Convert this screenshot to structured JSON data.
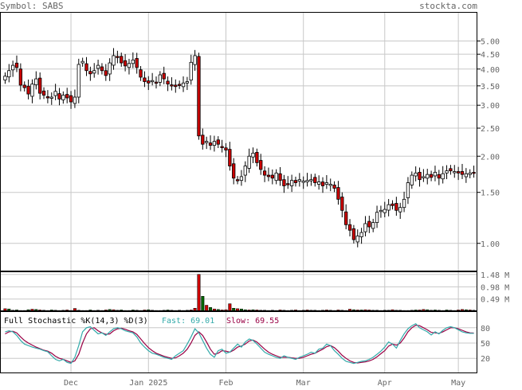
{
  "header": {
    "symbol_text": "Symbol: SABS",
    "source_text": "stockta.com"
  },
  "colors": {
    "up_candle": "#ffffff",
    "down_candle": "#cc0000",
    "volume_up": "#cc0000",
    "volume_down": "#006600",
    "fast_line": "#33aaaa",
    "slow_line": "#990044",
    "grid": "#c8c8c8",
    "frame": "#000000",
    "text": "#666666"
  },
  "chart_data": [
    {
      "type": "candlestick",
      "name": "price",
      "y_scale": "log",
      "ylim": [
        0.8,
        6.3
      ],
      "y_ticks": [
        "1.00",
        "1.50",
        "2.00",
        "2.50",
        "3.00",
        "3.50",
        "4.00",
        "4.50",
        "5.00"
      ],
      "x_ticks": [
        "Dec",
        "Jan 2025",
        "Feb",
        "Mar",
        "Apr",
        "May"
      ],
      "x_tick_index": [
        17,
        37,
        57,
        77,
        98,
        117
      ],
      "trading_days": 122,
      "close": [
        3.78,
        3.95,
        4.12,
        4.05,
        3.52,
        3.45,
        3.28,
        3.55,
        3.7,
        3.3,
        3.25,
        3.18,
        3.2,
        3.35,
        3.15,
        3.25,
        3.18,
        3.08,
        3.2,
        4.15,
        4.25,
        3.95,
        3.85,
        3.95,
        4.12,
        3.95,
        3.8,
        4.2,
        4.45,
        4.4,
        4.2,
        4.1,
        4.18,
        4.3,
        4.05,
        3.75,
        3.62,
        3.58,
        3.65,
        3.6,
        3.82,
        3.7,
        3.55,
        3.5,
        3.48,
        3.52,
        3.58,
        3.62,
        4.22,
        4.45,
        2.35,
        2.2,
        2.25,
        2.18,
        2.25,
        2.2,
        2.15,
        2.1,
        1.85,
        1.68,
        1.65,
        1.7,
        1.85,
        2.0,
        2.05,
        1.9,
        1.8,
        1.72,
        1.7,
        1.68,
        1.75,
        1.65,
        1.58,
        1.6,
        1.65,
        1.62,
        1.66,
        1.64,
        1.65,
        1.66,
        1.62,
        1.63,
        1.58,
        1.62,
        1.6,
        1.55,
        1.42,
        1.3,
        1.16,
        1.11,
        1.03,
        1.06,
        1.09,
        1.17,
        1.14,
        1.18,
        1.28,
        1.3,
        1.31,
        1.36,
        1.35,
        1.3,
        1.33,
        1.42,
        1.62,
        1.72,
        1.75,
        1.66,
        1.7,
        1.73,
        1.69,
        1.76,
        1.68,
        1.74,
        1.78,
        1.78,
        1.77,
        1.75,
        1.73,
        1.74,
        1.75,
        1.76
      ],
      "volume_axis_labels": [
        "1.48 M",
        "0.98 M",
        "0.49 M"
      ],
      "volume_max_m": 1.6,
      "volume_m": [
        0.1,
        0.09,
        0.04,
        0.05,
        0.03,
        0.03,
        0.06,
        0.08,
        0.07,
        0.05,
        0.04,
        0.03,
        0.05,
        0.04,
        0.03,
        0.04,
        0.05,
        0.03,
        0.11,
        0.04,
        0.03,
        0.03,
        0.05,
        0.03,
        0.04,
        0.03,
        0.05,
        0.07,
        0.06,
        0.04,
        0.05,
        0.03,
        0.03,
        0.05,
        0.04,
        0.03,
        0.05,
        0.06,
        0.04,
        0.03,
        0.03,
        0.04,
        0.05,
        0.04,
        0.03,
        0.04,
        0.03,
        0.04,
        0.05,
        0.12,
        1.48,
        0.6,
        0.24,
        0.15,
        0.09,
        0.07,
        0.05,
        0.06,
        0.3,
        0.12,
        0.1,
        0.09,
        0.06,
        0.05,
        0.06,
        0.05,
        0.04,
        0.04,
        0.03,
        0.04,
        0.03,
        0.05,
        0.04,
        0.03,
        0.04,
        0.05,
        0.03,
        0.04,
        0.05,
        0.04,
        0.04,
        0.03,
        0.04,
        0.05,
        0.04,
        0.03,
        0.05,
        0.04,
        0.03,
        0.08,
        0.06,
        0.05,
        0.05,
        0.06,
        0.05,
        0.04,
        0.04,
        0.03,
        0.04,
        0.04,
        0.06,
        0.04,
        0.04,
        0.03,
        0.03,
        0.04,
        0.05,
        0.05,
        0.07,
        0.06,
        0.04,
        0.05,
        0.04,
        0.03,
        0.05,
        0.04,
        0.03,
        0.05,
        0.07,
        0.06,
        0.05,
        0.04
      ],
      "volume_up": [
        1,
        0,
        1,
        0,
        1,
        0,
        0,
        1,
        0,
        1,
        0,
        1,
        0,
        0,
        1,
        0,
        1,
        0,
        1,
        0,
        1,
        1,
        0,
        1,
        0,
        1,
        1,
        0,
        1,
        1,
        0,
        1,
        0,
        0,
        1,
        0,
        1,
        0,
        1,
        1,
        0,
        1,
        0,
        1,
        0,
        1,
        0,
        0,
        1,
        1,
        1,
        0,
        1,
        0,
        1,
        0,
        1,
        1,
        1,
        0,
        1,
        0,
        0,
        1,
        0,
        1,
        1,
        0,
        1,
        0,
        1,
        1,
        0,
        1,
        0,
        1,
        0,
        1,
        1,
        0,
        1,
        1,
        0,
        1,
        0,
        1,
        1,
        1,
        0,
        1,
        0,
        1,
        0,
        1,
        1,
        0,
        1,
        0,
        1,
        0,
        1,
        1,
        0,
        1,
        0,
        1,
        0,
        1,
        1,
        0,
        1,
        0,
        1,
        1,
        0,
        1,
        0,
        1,
        1,
        0,
        1,
        0
      ],
      "stoch_label": "Full Stochastic %K(14,3) %D(3)",
      "fast_label": "Fast: 69.01",
      "slow_label": "Slow: 69.55",
      "stoch_ticks": [
        "80",
        "50",
        "20"
      ],
      "stoch_fast": [
        72,
        74,
        72,
        65,
        55,
        48,
        45,
        42,
        40,
        38,
        35,
        33,
        25,
        18,
        15,
        18,
        12,
        10,
        22,
        45,
        72,
        80,
        82,
        75,
        68,
        70,
        65,
        72,
        78,
        80,
        78,
        74,
        72,
        70,
        62,
        50,
        42,
        35,
        30,
        28,
        25,
        22,
        20,
        18,
        25,
        30,
        35,
        48,
        62,
        78,
        70,
        55,
        40,
        28,
        22,
        35,
        38,
        30,
        32,
        40,
        48,
        42,
        52,
        58,
        55,
        48,
        40,
        32,
        28,
        25,
        22,
        20,
        25,
        22,
        20,
        18,
        22,
        25,
        28,
        32,
        30,
        38,
        40,
        48,
        45,
        35,
        28,
        20,
        14,
        12,
        10,
        12,
        14,
        15,
        18,
        22,
        28,
        34,
        42,
        52,
        48,
        40,
        55,
        68,
        78,
        84,
        88,
        80,
        76,
        72,
        66,
        72,
        68,
        75,
        80,
        82,
        80,
        76,
        72,
        70,
        69,
        69.01
      ],
      "stoch_slow": [
        68,
        72,
        73,
        70,
        62,
        55,
        50,
        46,
        42,
        39,
        36,
        34,
        30,
        24,
        20,
        18,
        15,
        12,
        15,
        28,
        50,
        68,
        78,
        80,
        74,
        70,
        67,
        68,
        74,
        78,
        79,
        77,
        74,
        72,
        67,
        58,
        49,
        41,
        35,
        30,
        27,
        24,
        22,
        20,
        21,
        25,
        30,
        38,
        50,
        65,
        72,
        65,
        52,
        38,
        28,
        30,
        35,
        34,
        32,
        36,
        42,
        44,
        48,
        54,
        56,
        52,
        45,
        38,
        32,
        28,
        25,
        22,
        22,
        22,
        21,
        20,
        20,
        22,
        25,
        28,
        30,
        34,
        38,
        43,
        45,
        41,
        34,
        26,
        20,
        15,
        12,
        11,
        12,
        13,
        15,
        18,
        23,
        29,
        35,
        44,
        48,
        46,
        50,
        60,
        72,
        80,
        85,
        84,
        80,
        76,
        71,
        70,
        69,
        72,
        76,
        80,
        80,
        78,
        75,
        72,
        70,
        69.55
      ]
    }
  ]
}
